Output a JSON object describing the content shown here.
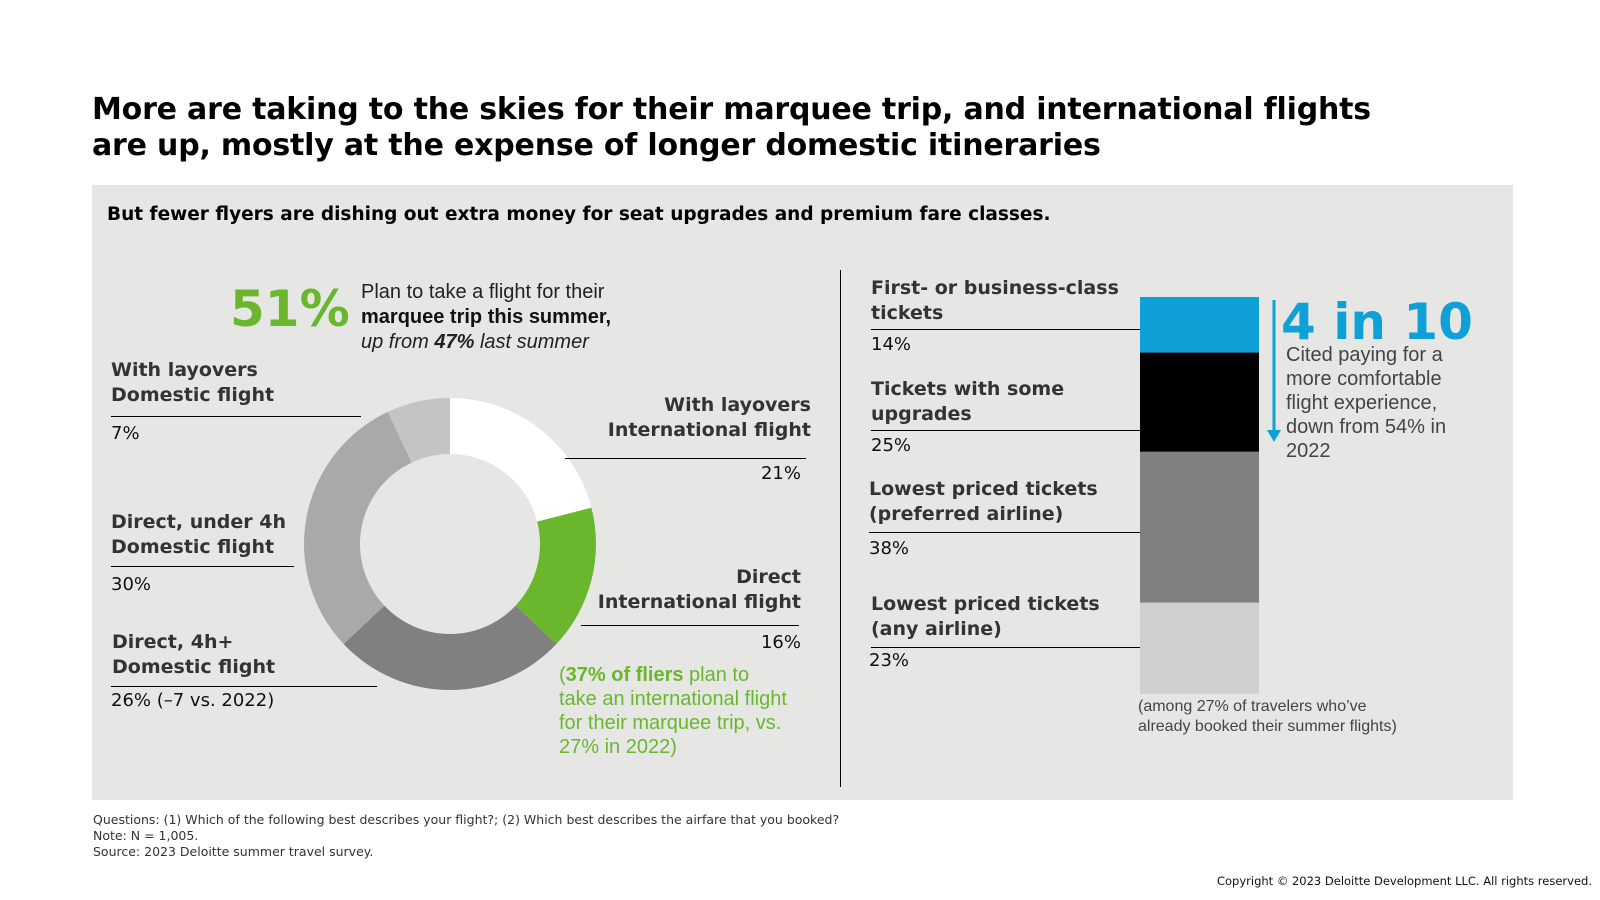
{
  "title": "More are taking to the skies for their marquee trip, and international flights are up, mostly at the expense of longer domestic itineraries",
  "subtitle": "But fewer flyers are dishing out extra money for seat upgrades and premium fare classes.",
  "stat": {
    "value": "51%",
    "line1": "Plan to take a flight for their",
    "line2": "marquee trip this summer,",
    "line3_pre": "up from ",
    "line3_bold": "47%",
    "line3_post": " last summer"
  },
  "donut": {
    "segments": [
      {
        "label_1": "With layovers",
        "label_2": "International flight",
        "pct": "21%"
      },
      {
        "label_1": "Direct",
        "label_2": "International flight",
        "pct": "16%"
      },
      {
        "label_1": "Direct, 4h+",
        "label_2": "Domestic flight",
        "pct": "26% (–7 vs. 2022)"
      },
      {
        "label_1": "Direct, under 4h",
        "label_2": "Domestic flight",
        "pct": "30%"
      },
      {
        "label_1": "With layovers",
        "label_2": "Domestic flight",
        "pct": "7%"
      }
    ],
    "note_open": "(",
    "note_bold": "37% of fliers",
    "note_rest": " plan to take an international flight for their marquee trip, vs. 27% in 2022)"
  },
  "stack": {
    "segments": [
      {
        "label_1": "First- or business-class",
        "label_2": "tickets",
        "pct": "14%"
      },
      {
        "label_1": "Tickets with some",
        "label_2": "upgrades",
        "pct": "25%"
      },
      {
        "label_1": "Lowest priced tickets",
        "label_2": "(preferred airline)",
        "pct": "38%"
      },
      {
        "label_1": "Lowest priced tickets",
        "label_2": "(any airline)",
        "pct": "23%"
      }
    ],
    "callout_big": "4 in 10",
    "callout_text": "Cited paying for a more comfortable flight experience, down from 54% in 2022",
    "base_note_1": "(among 27% of travelers who’ve",
    "base_note_2": "already booked their summer flights)"
  },
  "footer": {
    "line1": "Questions: (1) Which of the following best describes your flight?; (2) Which best describes the airfare that you booked?",
    "line2": "Note: N = 1,005.",
    "line3": "Source: 2023 Deloitte summer travel survey."
  },
  "copyright": "Copyright © 2023 Deloitte Development LLC. All rights reserved.",
  "colors": {
    "green": "#6ab72e",
    "blue": "#0fa0d8",
    "panel": "#e6e6e5"
  },
  "chart_data": [
    {
      "type": "pie",
      "categories": [
        "With layovers International flight",
        "Direct International flight",
        "Direct, 4h+ Domestic flight",
        "Direct, under 4h Domestic flight",
        "With layovers Domestic flight"
      ],
      "values": [
        21,
        16,
        26,
        30,
        7
      ],
      "colors": [
        "#ffffff",
        "#6ab72e",
        "#808080",
        "#a9a9a9",
        "#c4c4c4"
      ]
    },
    {
      "type": "bar",
      "stacked": true,
      "categories": [
        "First- or business-class tickets",
        "Tickets with some upgrades",
        "Lowest priced tickets (preferred airline)",
        "Lowest priced tickets (any airline)"
      ],
      "values": [
        14,
        25,
        38,
        23
      ],
      "colors": [
        "#0fa0d8",
        "#000000",
        "#808080",
        "#d0d0cf"
      ]
    }
  ]
}
